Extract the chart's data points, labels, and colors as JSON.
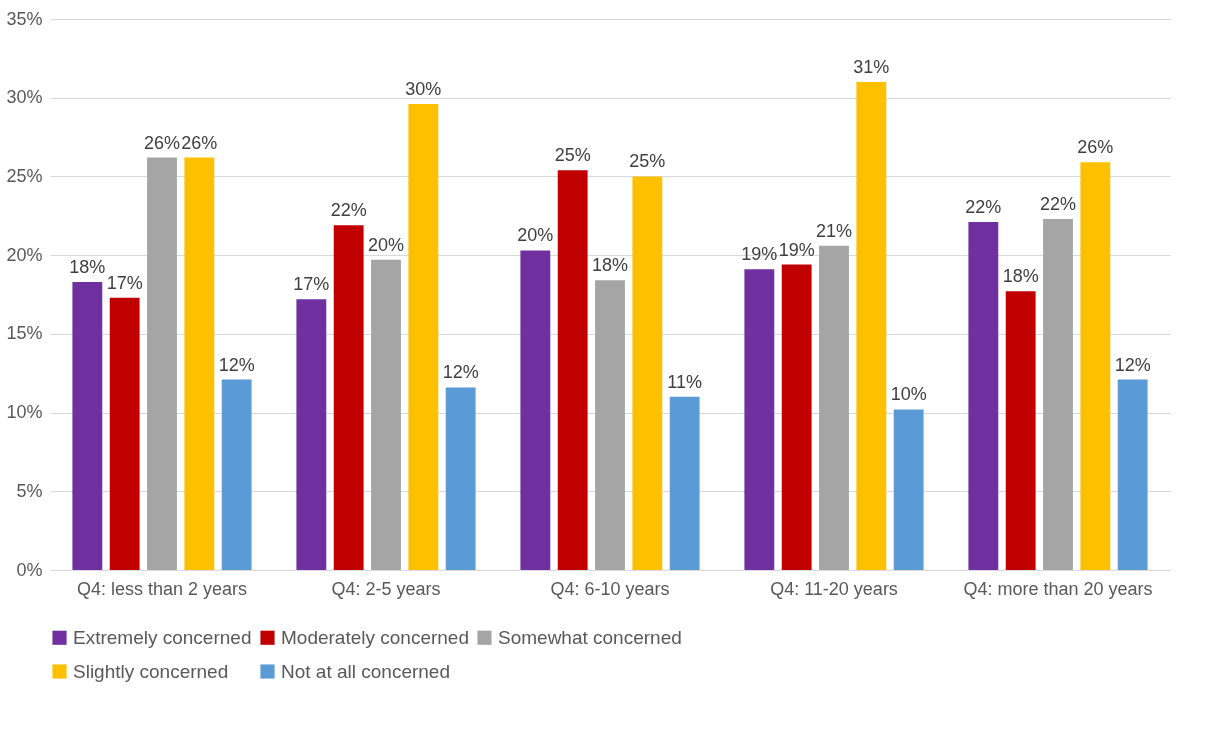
{
  "chart_data": {
    "type": "bar",
    "categories": [
      "Q4: less than 2 years",
      "Q4: 2-5 years",
      "Q4: 6-10 years",
      "Q4: 11-20 years",
      "Q4: more than 20 years"
    ],
    "series": [
      {
        "name": "Extremely concerned",
        "color": "#7030a0",
        "values": [
          18.3,
          17.2,
          20.3,
          19.1,
          22.1
        ],
        "value_labels": [
          "18%",
          "17%",
          "20%",
          "19%",
          "22%"
        ]
      },
      {
        "name": "Moderately concerned",
        "color": "#c00000",
        "values": [
          17.3,
          21.9,
          25.4,
          19.4,
          17.7
        ],
        "value_labels": [
          "17%",
          "22%",
          "25%",
          "19%",
          "18%"
        ]
      },
      {
        "name": "Somewhat concerned",
        "color": "#a5a5a5",
        "values": [
          26.2,
          19.7,
          18.4,
          20.6,
          22.3
        ],
        "value_labels": [
          "26%",
          "20%",
          "18%",
          "21%",
          "22%"
        ]
      },
      {
        "name": "Slightly concerned",
        "color": "#ffc000",
        "values": [
          26.2,
          29.6,
          25.0,
          31.0,
          25.9
        ],
        "value_labels": [
          "26%",
          "30%",
          "25%",
          "31%",
          "26%"
        ]
      },
      {
        "name": "Not at all concerned",
        "color": "#5b9bd5",
        "values": [
          12.1,
          11.6,
          11.0,
          10.2,
          12.1
        ],
        "value_labels": [
          "12%",
          "12%",
          "11%",
          "10%",
          "12%"
        ]
      }
    ],
    "ylim": [
      0,
      35
    ],
    "yticks": [
      {
        "value": 0,
        "label": "0%"
      },
      {
        "value": 5,
        "label": "5%"
      },
      {
        "value": 10,
        "label": "10%"
      },
      {
        "value": 15,
        "label": "15%"
      },
      {
        "value": 20,
        "label": "20%"
      },
      {
        "value": 25,
        "label": "25%"
      },
      {
        "value": 30,
        "label": "30%"
      },
      {
        "value": 35,
        "label": "35%"
      }
    ],
    "grid": "y",
    "legend": "bottom"
  }
}
